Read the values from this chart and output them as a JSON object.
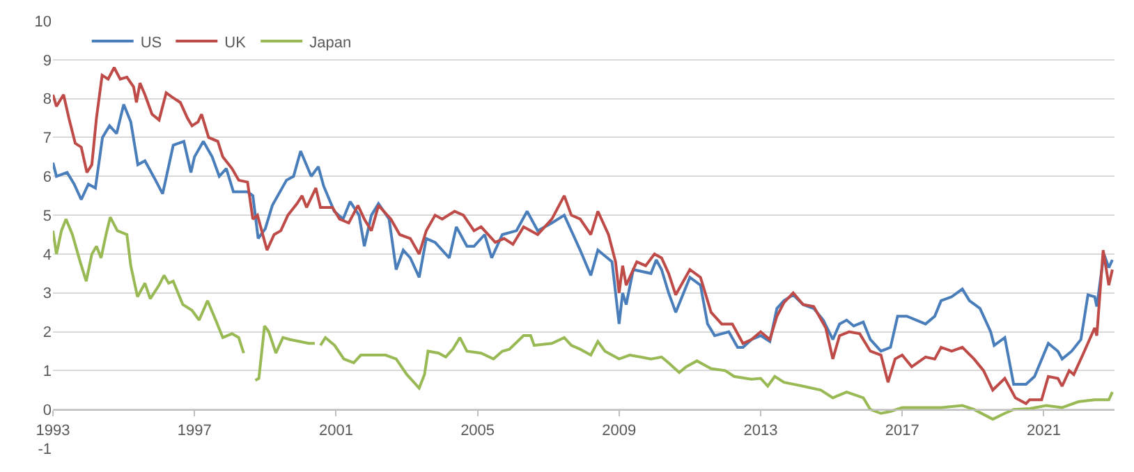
{
  "chart_data": {
    "type": "line",
    "xlim": [
      1993,
      2023
    ],
    "xticks": [
      1993,
      1997,
      2001,
      2005,
      2009,
      2013,
      2017,
      2021
    ],
    "ylim": [
      -1,
      10
    ],
    "yticks": [
      -1,
      0,
      1,
      2,
      3,
      4,
      5,
      6,
      7,
      8,
      9,
      10
    ],
    "grid": "y",
    "legend": "top left",
    "marker": "none",
    "line_style": "solid",
    "series": [
      {
        "name": "US",
        "color": "#4a7ebb",
        "x": [
          1993.0,
          1993.1,
          1993.4,
          1993.6,
          1993.8,
          1994.0,
          1994.2,
          1994.4,
          1994.6,
          1994.8,
          1995.0,
          1995.2,
          1995.4,
          1995.6,
          1995.9,
          1996.1,
          1996.4,
          1996.7,
          1996.9,
          1997.0,
          1997.25,
          1997.5,
          1997.7,
          1997.9,
          1998.1,
          1998.5,
          1998.65,
          1998.8,
          1999.0,
          1999.2,
          1999.6,
          1999.8,
          2000.0,
          2000.3,
          2000.5,
          2000.65,
          2000.95,
          2001.2,
          2001.4,
          2001.65,
          2001.8,
          2002.0,
          2002.2,
          2002.5,
          2002.7,
          2002.9,
          2003.1,
          2003.35,
          2003.55,
          2003.8,
          2004.2,
          2004.4,
          2004.7,
          2004.9,
          2005.2,
          2005.4,
          2005.7,
          2006.1,
          2006.4,
          2006.7,
          2007.1,
          2007.45,
          2007.7,
          2007.9,
          2008.2,
          2008.4,
          2008.8,
          2009.0,
          2009.1,
          2009.2,
          2009.4,
          2009.9,
          2010.05,
          2010.2,
          2010.4,
          2010.6,
          2011.0,
          2011.3,
          2011.5,
          2011.7,
          2012.1,
          2012.35,
          2012.5,
          2012.74,
          2013.0,
          2013.26,
          2013.46,
          2013.66,
          2013.92,
          2014.2,
          2014.5,
          2014.77,
          2015.04,
          2015.23,
          2015.43,
          2015.63,
          2015.9,
          2016.1,
          2016.4,
          2016.67,
          2016.87,
          2017.13,
          2017.4,
          2017.66,
          2017.92,
          2018.1,
          2018.4,
          2018.7,
          2018.9,
          2019.2,
          2019.5,
          2019.6,
          2019.9,
          2020.15,
          2020.5,
          2020.74,
          2021.13,
          2021.4,
          2021.52,
          2021.79,
          2022.05,
          2022.25,
          2022.44,
          2022.5,
          2022.7,
          2022.84,
          2022.94
        ],
        "values": [
          6.35,
          6.0,
          6.1,
          5.8,
          5.4,
          5.8,
          5.7,
          7.0,
          7.3,
          7.1,
          7.85,
          7.4,
          6.3,
          6.4,
          5.9,
          5.55,
          6.8,
          6.9,
          6.1,
          6.5,
          6.9,
          6.5,
          6.0,
          6.2,
          5.6,
          5.6,
          5.5,
          4.4,
          4.65,
          5.25,
          5.9,
          6.0,
          6.65,
          6.0,
          6.25,
          5.75,
          5.1,
          4.9,
          5.35,
          5.0,
          4.2,
          5.0,
          5.3,
          4.9,
          3.6,
          4.1,
          3.9,
          3.4,
          4.4,
          4.3,
          3.9,
          4.7,
          4.2,
          4.2,
          4.5,
          3.9,
          4.5,
          4.6,
          5.1,
          4.6,
          4.8,
          5.0,
          4.5,
          4.1,
          3.45,
          4.1,
          3.8,
          2.2,
          3.0,
          2.7,
          3.6,
          3.5,
          3.85,
          3.6,
          3.0,
          2.5,
          3.4,
          3.2,
          2.2,
          1.9,
          2.0,
          1.6,
          1.6,
          1.8,
          1.9,
          1.75,
          2.6,
          2.8,
          2.95,
          2.7,
          2.6,
          2.3,
          1.8,
          2.2,
          2.3,
          2.15,
          2.25,
          1.8,
          1.5,
          1.6,
          2.4,
          2.4,
          2.3,
          2.2,
          2.4,
          2.8,
          2.9,
          3.1,
          2.8,
          2.6,
          2.0,
          1.65,
          1.85,
          0.65,
          0.65,
          0.85,
          1.7,
          1.5,
          1.3,
          1.5,
          1.8,
          2.95,
          2.9,
          2.65,
          4.0,
          3.65,
          3.85
        ]
      },
      {
        "name": "UK",
        "color": "#be4b48",
        "x": [
          1993.0,
          1993.1,
          1993.3,
          1993.45,
          1993.63,
          1993.8,
          1993.96,
          1994.1,
          1994.23,
          1994.39,
          1994.56,
          1994.73,
          1994.9,
          1995.09,
          1995.28,
          1995.36,
          1995.46,
          1995.6,
          1995.8,
          1996.0,
          1996.2,
          1996.35,
          1996.6,
          1996.8,
          1996.93,
          1997.1,
          1997.2,
          1997.4,
          1997.66,
          1997.8,
          1998.06,
          1998.25,
          1998.5,
          1998.65,
          1998.78,
          1999.05,
          1999.25,
          1999.44,
          1999.64,
          1999.9,
          2000.04,
          2000.17,
          2000.43,
          2000.56,
          2000.9,
          2001.1,
          2001.36,
          2001.62,
          2001.8,
          2002.0,
          2002.2,
          2002.55,
          2002.8,
          2003.1,
          2003.35,
          2003.55,
          2003.8,
          2004.0,
          2004.35,
          2004.6,
          2004.9,
          2005.1,
          2005.5,
          2005.75,
          2006.0,
          2006.3,
          2006.7,
          2007.1,
          2007.45,
          2007.65,
          2007.9,
          2008.2,
          2008.4,
          2008.7,
          2008.9,
          2009.0,
          2009.1,
          2009.2,
          2009.5,
          2009.75,
          2010.0,
          2010.2,
          2010.4,
          2010.6,
          2011.0,
          2011.3,
          2011.6,
          2011.9,
          2012.2,
          2012.5,
          2012.74,
          2013.0,
          2013.26,
          2013.46,
          2013.66,
          2013.92,
          2014.2,
          2014.5,
          2014.84,
          2015.04,
          2015.23,
          2015.5,
          2015.8,
          2016.1,
          2016.4,
          2016.6,
          2016.8,
          2017.0,
          2017.27,
          2017.66,
          2017.92,
          2018.1,
          2018.4,
          2018.7,
          2019.03,
          2019.3,
          2019.56,
          2019.9,
          2020.2,
          2020.5,
          2020.6,
          2020.94,
          2021.13,
          2021.4,
          2021.52,
          2021.72,
          2021.85,
          2022.1,
          2022.44,
          2022.5,
          2022.68,
          2022.84,
          2022.94
        ],
        "values": [
          8.1,
          7.8,
          8.1,
          7.5,
          6.85,
          6.75,
          6.1,
          6.3,
          7.5,
          8.6,
          8.5,
          8.8,
          8.5,
          8.55,
          8.3,
          7.9,
          8.4,
          8.1,
          7.6,
          7.45,
          8.15,
          8.05,
          7.9,
          7.5,
          7.3,
          7.4,
          7.6,
          7.0,
          6.9,
          6.5,
          6.2,
          5.9,
          5.85,
          4.9,
          5.0,
          4.1,
          4.5,
          4.6,
          5.0,
          5.3,
          5.5,
          5.2,
          5.7,
          5.2,
          5.2,
          4.9,
          4.8,
          5.25,
          4.9,
          4.6,
          5.25,
          4.9,
          4.5,
          4.4,
          4.0,
          4.6,
          5.0,
          4.9,
          5.1,
          5.0,
          4.6,
          4.7,
          4.3,
          4.4,
          4.25,
          4.7,
          4.5,
          4.9,
          5.5,
          5.0,
          4.9,
          4.5,
          5.1,
          4.5,
          3.8,
          3.0,
          3.7,
          3.2,
          3.8,
          3.7,
          4.0,
          3.9,
          3.5,
          2.95,
          3.6,
          3.4,
          2.5,
          2.2,
          2.2,
          1.7,
          1.8,
          2.0,
          1.8,
          2.4,
          2.75,
          3.0,
          2.7,
          2.65,
          2.1,
          1.3,
          1.9,
          2.0,
          1.95,
          1.5,
          1.4,
          0.7,
          1.3,
          1.4,
          1.1,
          1.35,
          1.3,
          1.6,
          1.5,
          1.6,
          1.3,
          1.0,
          0.5,
          0.8,
          0.3,
          0.15,
          0.25,
          0.25,
          0.85,
          0.8,
          0.6,
          1.0,
          0.9,
          1.4,
          2.1,
          1.9,
          4.1,
          3.2,
          3.6
        ]
      },
      {
        "name": "Japan",
        "color": "#98b954",
        "x": [
          1993.0,
          1993.1,
          1993.24,
          1993.37,
          1993.55,
          1993.77,
          1993.94,
          1994.1,
          1994.23,
          1994.36,
          1994.5,
          1994.62,
          1994.82,
          1995.09,
          1995.2,
          1995.39,
          1995.6,
          1995.75,
          1996.0,
          1996.14,
          1996.27,
          1996.4,
          1996.67,
          1996.93,
          1997.13,
          1997.37,
          1997.6,
          1997.8,
          1998.06,
          1998.25,
          1998.39,
          1998.55,
          1998.72,
          1998.82,
          1998.98,
          1999.1,
          1999.3,
          1999.5,
          1999.7,
          1999.97,
          2000.23,
          2000.4,
          2000.48,
          2000.56,
          2000.7,
          2000.96,
          2001.22,
          2001.5,
          2001.7,
          2002.1,
          2002.4,
          2002.7,
          2003.0,
          2003.35,
          2003.5,
          2003.6,
          2003.9,
          2004.1,
          2004.3,
          2004.5,
          2004.7,
          2005.1,
          2005.45,
          2005.7,
          2005.9,
          2006.3,
          2006.5,
          2006.6,
          2007.1,
          2007.45,
          2007.65,
          2007.9,
          2008.2,
          2008.4,
          2008.6,
          2009.0,
          2009.3,
          2009.6,
          2009.9,
          2010.2,
          2010.4,
          2010.7,
          2010.9,
          2011.2,
          2011.6,
          2012.0,
          2012.25,
          2012.74,
          2013.0,
          2013.2,
          2013.4,
          2013.66,
          2013.92,
          2014.2,
          2014.7,
          2015.04,
          2015.43,
          2015.9,
          2016.1,
          2016.4,
          2016.67,
          2017.0,
          2017.6,
          2018.1,
          2018.7,
          2019.03,
          2019.56,
          2019.9,
          2020.15,
          2020.6,
          2021.07,
          2021.52,
          2021.98,
          2022.44,
          2022.84,
          2022.94
        ],
        "values": [
          4.6,
          4.0,
          4.6,
          4.9,
          4.5,
          3.8,
          3.3,
          4.0,
          4.2,
          3.9,
          4.5,
          4.95,
          4.6,
          4.5,
          3.7,
          2.9,
          3.25,
          2.85,
          3.2,
          3.45,
          3.25,
          3.3,
          2.7,
          2.55,
          2.3,
          2.8,
          2.3,
          1.85,
          1.95,
          1.85,
          1.45,
          null,
          0.75,
          0.8,
          2.15,
          2.0,
          1.45,
          1.85,
          1.8,
          1.75,
          1.7,
          1.7,
          null,
          1.65,
          1.85,
          1.65,
          1.3,
          1.2,
          1.4,
          1.4,
          1.4,
          1.3,
          0.9,
          0.55,
          0.9,
          1.5,
          1.45,
          1.35,
          1.55,
          1.85,
          1.5,
          1.45,
          1.3,
          1.5,
          1.55,
          1.9,
          1.9,
          1.65,
          1.7,
          1.85,
          1.65,
          1.55,
          1.4,
          1.75,
          1.5,
          1.3,
          1.4,
          1.35,
          1.3,
          1.35,
          1.2,
          0.95,
          1.1,
          1.25,
          1.05,
          1.0,
          0.85,
          0.78,
          0.8,
          0.6,
          0.85,
          0.7,
          0.65,
          0.6,
          0.5,
          0.3,
          0.45,
          0.3,
          0.0,
          -0.1,
          -0.05,
          0.05,
          0.05,
          0.05,
          0.1,
          0.0,
          -0.25,
          -0.1,
          0.0,
          0.02,
          0.1,
          0.05,
          0.2,
          0.25,
          0.25,
          0.45
        ]
      }
    ]
  }
}
